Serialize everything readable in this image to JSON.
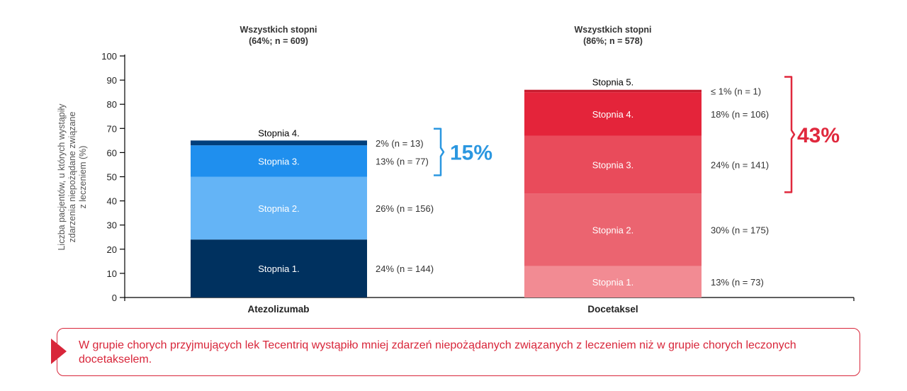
{
  "chart_data": {
    "type": "bar",
    "stacked": true,
    "ylabel": "Liczba pacjentów, u których wystąpiły zdarzenia niepożądane związane z leczeniem (%)",
    "ylabel_lines": [
      "Liczba pacjentów, u których wystąpiły",
      "zdarzenia niepożądane związane",
      "z leczeniem (%)"
    ],
    "ylim": [
      0,
      100
    ],
    "yticks": [
      "0",
      "10",
      "20",
      "30",
      "40",
      "50",
      "60",
      "70",
      "80",
      "90",
      "100"
    ],
    "categories": [
      "Atezolizumab",
      "Docetaksel"
    ],
    "bars": [
      {
        "name": "Atezolizumab",
        "header_line1": "Wszystkich stopni",
        "header_line2": "(64%; n = 609)",
        "bracket_total": "15%",
        "bracket_color": "#2b97e0",
        "segments": [
          {
            "label": "Stopnia 1.",
            "value": 24,
            "annotation": "24% (n = 144)",
            "color": "#00315f",
            "label_pos": "inside"
          },
          {
            "label": "Stopnia 2.",
            "value": 26,
            "annotation": "26% (n = 156)",
            "color": "#64b4f6",
            "label_pos": "inside"
          },
          {
            "label": "Stopnia 3.",
            "value": 13,
            "annotation": "13% (n = 77)",
            "color": "#1f8fee",
            "label_pos": "inside"
          },
          {
            "label": "Stopnia 4.",
            "value": 2,
            "annotation": "2% (n = 13)",
            "color": "#003f7c",
            "label_pos": "above"
          }
        ]
      },
      {
        "name": "Docetaksel",
        "header_line1": "Wszystkich stopni",
        "header_line2": "(86%; n = 578)",
        "bracket_total": "43%",
        "bracket_color": "#e0283d",
        "segments": [
          {
            "label": "Stopnia 1.",
            "value": 13,
            "annotation": "13% (n = 73)",
            "color": "#f28b93",
            "label_pos": "inside"
          },
          {
            "label": "Stopnia 2.",
            "value": 30,
            "annotation": "30% (n = 175)",
            "color": "#eb6470",
            "label_pos": "inside"
          },
          {
            "label": "Stopnia 3.",
            "value": 24,
            "annotation": "24% (n = 141)",
            "color": "#e94b5b",
            "label_pos": "inside"
          },
          {
            "label": "Stopnia 4.",
            "value": 18,
            "annotation": "18% (n = 106)",
            "color": "#e4243a",
            "label_pos": "inside"
          },
          {
            "label": "Stopnia 5.",
            "value": 1,
            "annotation": "≤ 1% (n = 1)",
            "color": "#c81d30",
            "label_pos": "above"
          }
        ]
      }
    ],
    "grid": false
  },
  "callout": {
    "text": "W grupie chorych przyjmujących lek Tecentriq wystąpiło mniej zdarzeń niepożądanych związanych z leczeniem niż w grupie chorych leczonych docetakselem.",
    "color": "#d8263a"
  }
}
